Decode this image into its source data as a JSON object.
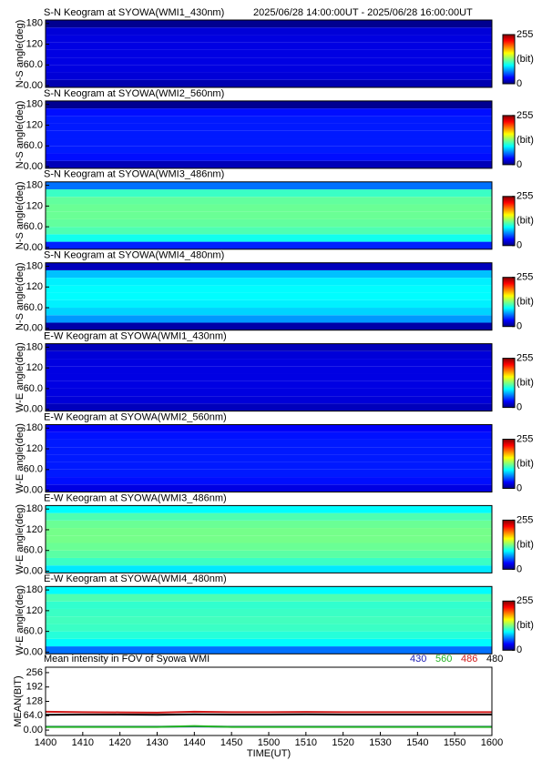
{
  "chart_data": [
    {
      "type": "heatmap",
      "title": "S-N Keogram at SYOWA(WMI1_430nm)",
      "subtitle": "2025/06/28 14:00:00UT - 2025/06/28 16:00:00UT",
      "ylabel": "N-S angle(deg)",
      "ylim": [
        -5,
        190
      ],
      "yticks": [
        {
          "value": 0,
          "label": "0.00"
        },
        {
          "value": 60,
          "label": "60.0"
        },
        120,
        180
      ],
      "values": [
        12,
        22,
        24,
        25,
        25,
        25,
        24,
        22,
        4
      ],
      "clim": [
        0,
        255
      ],
      "cticks": [
        0,
        255
      ],
      "clabel": "(bit)"
    },
    {
      "type": "heatmap",
      "title": "S-N Keogram at SYOWA(WMI2_560nm)",
      "ylabel": "N-S angle(deg)",
      "ylim": [
        -5,
        190
      ],
      "yticks": [
        {
          "value": 0,
          "label": "0.00"
        },
        {
          "value": 60,
          "label": "60.0"
        },
        120,
        180
      ],
      "values": [
        14,
        35,
        38,
        38,
        38,
        38,
        38,
        35,
        4
      ],
      "clim": [
        0,
        255
      ],
      "cticks": [
        0,
        255
      ],
      "clabel": "(bit)"
    },
    {
      "type": "heatmap",
      "title": "S-N Keogram at SYOWA(WMI3_486nm)",
      "ylabel": "N-S angle(deg)",
      "ylim": [
        -5,
        190
      ],
      "yticks": [
        {
          "value": 0,
          "label": "0.00"
        },
        {
          "value": 60,
          "label": "60.0"
        },
        120,
        180
      ],
      "values": [
        40,
        100,
        115,
        120,
        122,
        122,
        120,
        110,
        60
      ],
      "clim": [
        0,
        255
      ],
      "cticks": [
        0,
        255
      ],
      "clabel": "(bit)"
    },
    {
      "type": "heatmap",
      "title": "S-N Keogram at SYOWA(WMI4_480nm)",
      "ylabel": "N-S angle(deg)",
      "ylim": [
        -5,
        190
      ],
      "yticks": [
        {
          "value": 0,
          "label": "0.00"
        },
        {
          "value": 60,
          "label": "60.0"
        },
        120,
        180
      ],
      "values": [
        10,
        70,
        85,
        92,
        95,
        95,
        92,
        80,
        15
      ],
      "clim": [
        0,
        255
      ],
      "cticks": [
        0,
        255
      ],
      "clabel": "(bit)"
    },
    {
      "type": "heatmap",
      "title": "E-W Keogram at SYOWA(WMI1_430nm)",
      "ylabel": "W-E angle(deg)",
      "ylim": [
        -5,
        190
      ],
      "yticks": [
        {
          "value": 0,
          "label": "0.00"
        },
        {
          "value": 60,
          "label": "60.0"
        },
        120,
        180
      ],
      "values": [
        15,
        22,
        24,
        25,
        25,
        25,
        24,
        22,
        15
      ],
      "clim": [
        0,
        255
      ],
      "cticks": [
        0,
        255
      ],
      "clabel": "(bit)"
    },
    {
      "type": "heatmap",
      "title": "E-W Keogram at SYOWA(WMI2_560nm)",
      "ylabel": "W-E angle(deg)",
      "ylim": [
        -5,
        190
      ],
      "yticks": [
        {
          "value": 0,
          "label": "0.00"
        },
        {
          "value": 60,
          "label": "60.0"
        },
        120,
        180
      ],
      "values": [
        25,
        35,
        38,
        38,
        38,
        38,
        38,
        36,
        30
      ],
      "clim": [
        0,
        255
      ],
      "cticks": [
        0,
        255
      ],
      "clabel": "(bit)"
    },
    {
      "type": "heatmap",
      "title": "E-W Keogram at SYOWA(WMI3_486nm)",
      "ylabel": "W-E angle(deg)",
      "ylim": [
        -5,
        190
      ],
      "yticks": [
        {
          "value": 0,
          "label": "0.00"
        },
        {
          "value": 60,
          "label": "60.0"
        },
        120,
        180
      ],
      "values": [
        90,
        110,
        118,
        122,
        125,
        125,
        122,
        115,
        95
      ],
      "clim": [
        0,
        255
      ],
      "cticks": [
        0,
        255
      ],
      "clabel": "(bit)"
    },
    {
      "type": "heatmap",
      "title": "E-W Keogram at SYOWA(WMI4_480nm)",
      "ylabel": "W-E angle(deg)",
      "ylim": [
        -5,
        190
      ],
      "yticks": [
        {
          "value": 0,
          "label": "0.00"
        },
        {
          "value": 60,
          "label": "60.0"
        },
        120,
        180
      ],
      "values": [
        60,
        95,
        105,
        110,
        112,
        110,
        108,
        115,
        95
      ],
      "clim": [
        0,
        255
      ],
      "cticks": [
        0,
        255
      ],
      "clabel": "(bit)"
    },
    {
      "type": "line",
      "title": "Mean intensity in FOV of Syowa WMI",
      "ylabel": "MEAN(BIT)",
      "xlabel": "TIME(UT)",
      "categories": [
        "1400",
        "1410",
        "1420",
        "1430",
        "1440",
        "1450",
        "1500",
        "1510",
        "1520",
        "1530",
        "1540",
        "1550",
        "1600"
      ],
      "ylim": [
        -24,
        280
      ],
      "yticks": [
        {
          "value": 0,
          "label": "0.00"
        },
        {
          "value": 64,
          "label": "64.0"
        },
        128,
        192,
        256
      ],
      "series": [
        {
          "name": "430",
          "color": "#1c1cb4",
          "values": [
            15,
            15,
            15,
            15,
            16,
            15,
            15,
            15,
            15,
            15,
            15,
            15,
            15
          ]
        },
        {
          "name": "560",
          "color": "#22b422",
          "values": [
            14,
            14,
            14,
            14,
            18,
            14,
            14,
            14,
            14,
            14,
            14,
            14,
            14
          ]
        },
        {
          "name": "486",
          "color": "#d01818",
          "values": [
            82,
            80,
            79,
            78,
            82,
            80,
            80,
            81,
            80,
            80,
            80,
            80,
            80
          ]
        },
        {
          "name": "480",
          "color": "#000000",
          "values": [
            68,
            69,
            69,
            68,
            70,
            69,
            69,
            70,
            69,
            69,
            69,
            69,
            69
          ]
        }
      ]
    }
  ]
}
